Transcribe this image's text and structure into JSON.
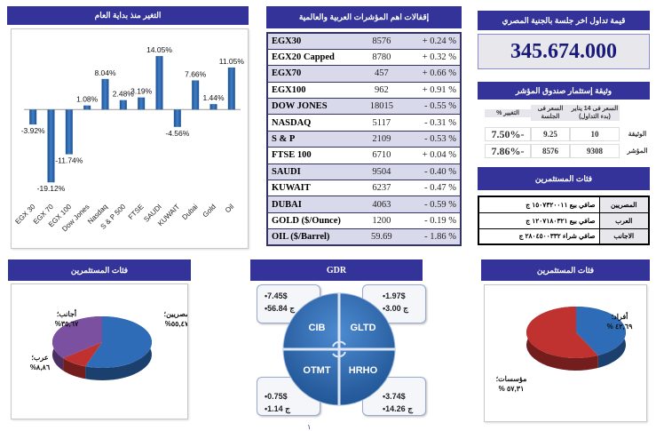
{
  "ytd_panel": {
    "title": "التغير منذ بداية العام"
  },
  "chart_data": [
    {
      "type": "bar",
      "title": "التغير منذ بداية العام",
      "categories": [
        "EGX 30",
        "EGX 70",
        "EGX 100",
        "Dow Jones",
        "Nasdaq",
        "S & P 500",
        "FTSE",
        "SAUDI",
        "KUWAIT",
        "Dubai",
        "Gold",
        "Oil"
      ],
      "values": [
        -3.92,
        -19.12,
        -11.74,
        1.08,
        8.04,
        2.48,
        3.19,
        14.05,
        -4.56,
        7.66,
        1.44,
        11.05
      ],
      "labels": [
        "-3.92%",
        "-19.12%",
        "-11.74%",
        "1.08%",
        "8.04%",
        "2.48%",
        "3.19%",
        "14.05%",
        "-4.56%",
        "7.66%",
        "1.44%",
        "11.05%"
      ],
      "unit": "%",
      "xlabel": "",
      "ylabel": "",
      "ylim": [
        -20,
        15
      ],
      "grid": false,
      "legend": "none",
      "color": "#2e6bb5"
    },
    {
      "type": "pie",
      "title": "فئات المستثمرين",
      "categories": [
        "مصريين",
        "عرب",
        "أجانب"
      ],
      "values": [
        55.47,
        8.86,
        35.67
      ],
      "labels": [
        "مصريين؛ ٥٥,٤٧%",
        "عرب؛ ٨,٨٦%",
        "أجانب؛ ٣٥,٦٧%"
      ],
      "colors": [
        "#2f6cb8",
        "#c0322f",
        "#7b50a0"
      ]
    },
    {
      "type": "pie",
      "title": "فئات المستثمرين",
      "categories": [
        "أفراد",
        "مؤسسات"
      ],
      "values": [
        42.69,
        57.31
      ],
      "labels": [
        "أفراد؛ ٤٢,٦٩ %",
        "مؤسسات؛ ٥٧,٣١ %"
      ],
      "colors": [
        "#2f6cb8",
        "#c0322f"
      ]
    }
  ],
  "indices_panel": {
    "title": "إقفالات اهم المؤشرات العربية والعالمية",
    "rows": [
      {
        "name": "EGX30",
        "value": "8576",
        "change": "+ 0.24 %"
      },
      {
        "name": "EGX20 Capped",
        "value": "8780",
        "change": "+ 0.32 %"
      },
      {
        "name": "EGX70",
        "value": "457",
        "change": "+ 0.66 %"
      },
      {
        "name": "EGX100",
        "value": "962",
        "change": "+ 0.91 %"
      },
      {
        "name": "DOW JONES",
        "value": "18015",
        "change": "- 0.55 %"
      },
      {
        "name": "NASDAQ",
        "value": "5117",
        "change": "- 0.31 %"
      },
      {
        "name": "S & P",
        "value": "2109",
        "change": "- 0.53 %"
      },
      {
        "name": "FTSE 100",
        "value": "6710",
        "change": "+ 0.04 %"
      },
      {
        "name": "SAUDI",
        "value": "9504",
        "change": "- 0.40 %"
      },
      {
        "name": "KUWAIT",
        "value": "6237",
        "change": "- 0.47 %"
      },
      {
        "name": "DUBAI",
        "value": "4063",
        "change": "- 0.59 %"
      },
      {
        "name": "GOLD ($/Ounce)",
        "value": "1200",
        "change": "- 0.19 %"
      },
      {
        "name": "OIL ($/Barrel)",
        "value": "59.69",
        "change": "- 1.86 %"
      }
    ]
  },
  "trade_panel": {
    "title": "قيمة تداول اخر جلسة بالجنية المصري",
    "value": "345.674.000"
  },
  "fund_panel": {
    "title": "وثيقة إستثمار صندوق المؤشر",
    "headers": [
      "السعر فى 14 يناير (بدء التداول)",
      "السعر فى الجلسة",
      "التغيير %"
    ],
    "rows": [
      {
        "label": "الوثيقة",
        "start_price": "10",
        "session_price": "9.25",
        "change": "-7.50%"
      },
      {
        "label": "المؤشر",
        "start_price": "9308",
        "session_price": "8576",
        "change": "-7.86%"
      }
    ]
  },
  "investors_panel": {
    "title": "فئات المستثمرين",
    "rows": [
      {
        "category": "المصريين",
        "value": "صافي بيع ١٥٠٧٣٢٠٠١١ ج"
      },
      {
        "category": "العرب",
        "value": "صافي بيع ١٢٠٧١٨٠٣٢١ ج"
      },
      {
        "category": "الاجانب",
        "value": "صافي شراء ٢٨٠٤٥٠٠٣٣٢ ج"
      }
    ]
  },
  "investors_pie_left": {
    "title": "فئات المستثمرين"
  },
  "investors_pie_right": {
    "title": "فئات المستثمرين"
  },
  "gdr_panel": {
    "title": "GDR",
    "quadrants": [
      {
        "name": "CIB",
        "usd": "•7.45$",
        "egp": "•56.84 ج"
      },
      {
        "name": "GLTD",
        "usd": "•1.97$",
        "egp": "•3.00 ج"
      },
      {
        "name": "OTMT",
        "usd": "•0.75$",
        "egp": "•1.14 ج"
      },
      {
        "name": "HRHO",
        "usd": "•3.74$",
        "egp": "•14.26 ج"
      }
    ]
  },
  "page_number": "١"
}
